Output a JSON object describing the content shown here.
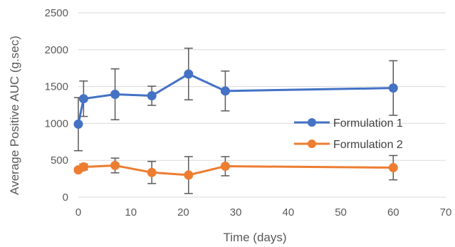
{
  "chart_data": {
    "type": "line",
    "xlabel": "Time (days)",
    "ylabel": "Average Positive AUC (g.sec)",
    "xlim": [
      0,
      70
    ],
    "ylim": [
      0,
      2500
    ],
    "x_ticks": [
      0,
      10,
      20,
      30,
      40,
      50,
      60,
      70
    ],
    "y_ticks": [
      0,
      500,
      1000,
      1500,
      2000,
      2500
    ],
    "grid": "horizontal",
    "legend_position": "right",
    "series": [
      {
        "name": "Formulation 1",
        "color": "#4472C4",
        "x": [
          0,
          1,
          7,
          14,
          21,
          28,
          60
        ],
        "y": [
          990,
          1335,
          1395,
          1375,
          1670,
          1440,
          1480
        ],
        "err": [
          360,
          240,
          345,
          130,
          350,
          270,
          370
        ]
      },
      {
        "name": "Formulation 2",
        "color": "#ED7D31",
        "x": [
          0,
          1,
          7,
          14,
          21,
          28,
          60
        ],
        "y": [
          370,
          410,
          430,
          335,
          300,
          420,
          400
        ],
        "err": [
          25,
          40,
          100,
          150,
          250,
          130,
          165
        ]
      }
    ]
  }
}
